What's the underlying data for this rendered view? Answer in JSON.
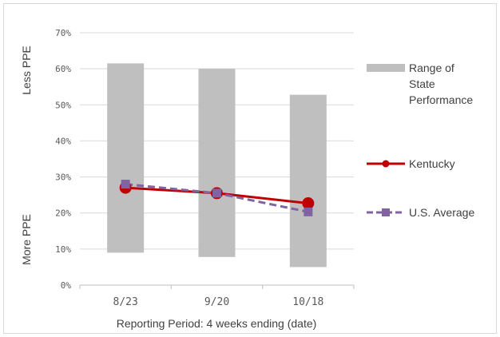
{
  "chart_data": {
    "type": "line",
    "categories": [
      "8/23",
      "9/20",
      "10/18"
    ],
    "xlabel": "Reporting Period: 4 weeks ending (date)",
    "ylabel_top": "Less PPE",
    "ylabel_bottom": "More PPE",
    "ylim": [
      0,
      70
    ],
    "yticks": [
      "0%",
      "10%",
      "20%",
      "30%",
      "40%",
      "50%",
      "60%",
      "70%"
    ],
    "ytick_values": [
      0,
      10,
      20,
      30,
      40,
      50,
      60,
      70
    ],
    "grid": true,
    "legend_position": "right",
    "range": {
      "name_lines": [
        "Range of",
        "State",
        "Performance"
      ],
      "low": [
        9,
        7.8,
        5
      ],
      "high": [
        61.5,
        60,
        52.8
      ],
      "color": "#bfbfbf"
    },
    "series": [
      {
        "name": "Kentucky",
        "values": [
          27,
          25.5,
          22.7
        ],
        "color": "#c00000",
        "marker": "circle",
        "dash": "solid"
      },
      {
        "name": "U.S. Average",
        "values": [
          28,
          25.5,
          20.3
        ],
        "color": "#8064a2",
        "marker": "square",
        "dash": "dashed"
      }
    ]
  }
}
